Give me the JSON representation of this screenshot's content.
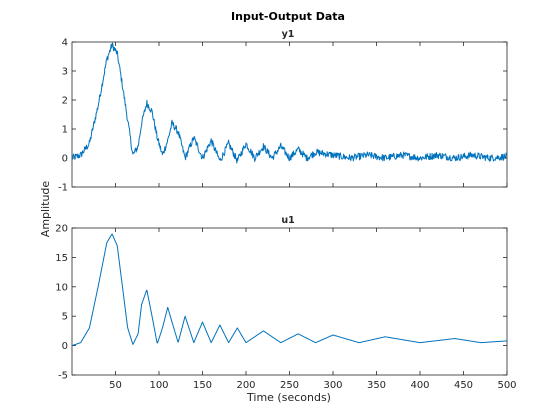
{
  "chart_data": {
    "type": "line",
    "title": "Input-Output Data",
    "xlabel": "Time (seconds)",
    "ylabel": "Amplitude",
    "panels": [
      {
        "name": "y1",
        "subtitle": "y1",
        "xlim": [
          0,
          500
        ],
        "ylim": [
          -1,
          4
        ],
        "xticks": [
          50,
          100,
          150,
          200,
          250,
          300,
          350,
          400,
          450,
          500
        ],
        "xtick_labels_shown": false,
        "yticks": [
          -1,
          0,
          1,
          2,
          3,
          4
        ],
        "ytick_labels": [
          "-1",
          "0",
          "1",
          "2",
          "3",
          "4"
        ],
        "noise_amplitude": 0.12,
        "series": [
          {
            "x": [
              0,
              10,
              20,
              30,
              40,
              46,
              52,
              58,
              64,
              70,
              76,
              80,
              86,
              92,
              98,
              104,
              110,
              115,
              122,
              130,
              140,
              150,
              160,
              170,
              180,
              190,
              200,
              210,
              220,
              230,
              240,
              250,
              260,
              270,
              280,
              300,
              320,
              340,
              360,
              380,
              400,
              420,
              440,
              460,
              480,
              500
            ],
            "y": [
              0,
              0.1,
              0.5,
              1.8,
              3.4,
              3.9,
              3.6,
              2.5,
              1.3,
              0.1,
              0.4,
              1.2,
              1.9,
              1.6,
              0.7,
              0.1,
              0.6,
              1.2,
              0.9,
              0.0,
              0.7,
              0.0,
              0.6,
              -0.1,
              0.5,
              -0.1,
              0.5,
              0.0,
              0.4,
              0.0,
              0.4,
              0.0,
              0.3,
              0.0,
              0.2,
              0.1,
              0.0,
              0.1,
              0.0,
              0.1,
              0.0,
              0.1,
              0.0,
              0.1,
              0.0,
              0.05
            ]
          }
        ]
      },
      {
        "name": "u1",
        "subtitle": "u1",
        "xlim": [
          0,
          500
        ],
        "ylim": [
          -5,
          20
        ],
        "xticks": [
          50,
          100,
          150,
          200,
          250,
          300,
          350,
          400,
          450,
          500
        ],
        "xtick_labels": [
          "50",
          "100",
          "150",
          "200",
          "250",
          "300",
          "350",
          "400",
          "450",
          "500"
        ],
        "yticks": [
          -5,
          0,
          5,
          10,
          15,
          20
        ],
        "ytick_labels": [
          "-5",
          "0",
          "5",
          "10",
          "15",
          "20"
        ],
        "noise_amplitude": 0.0,
        "series": [
          {
            "x": [
              0,
              10,
              20,
              30,
              40,
              46,
              52,
              58,
              64,
              70,
              76,
              80,
              86,
              92,
              98,
              104,
              110,
              115,
              122,
              130,
              140,
              150,
              160,
              170,
              180,
              190,
              200,
              220,
              240,
              260,
              280,
              300,
              330,
              360,
              400,
              440,
              470,
              500
            ],
            "y": [
              0,
              0.5,
              3,
              10,
              17.5,
              19,
              17,
              10,
              3,
              0.2,
              2,
              7,
              9.5,
              5,
              0.3,
              3,
              6.5,
              4,
              0.5,
              5,
              0.5,
              4,
              0.5,
              3.5,
              0.5,
              3,
              0.5,
              2.5,
              0.5,
              2,
              0.5,
              1.8,
              0.5,
              1.5,
              0.5,
              1.2,
              0.5,
              0.8
            ]
          }
        ]
      }
    ]
  }
}
